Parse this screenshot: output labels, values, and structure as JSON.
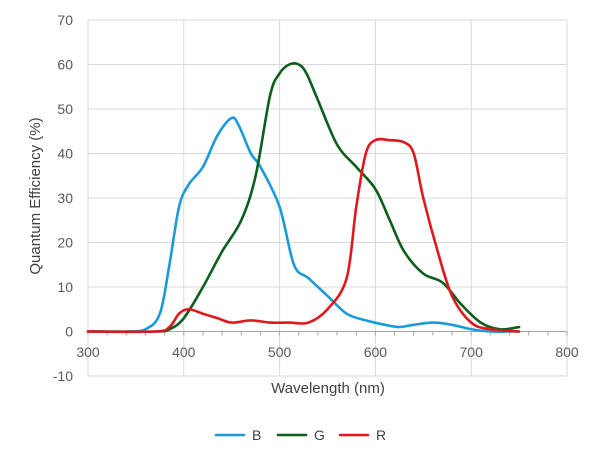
{
  "chart_data": {
    "type": "line",
    "xlabel": "Wavelength (nm)",
    "ylabel": "Quantum Efficiency (%)",
    "xlim": [
      300,
      800
    ],
    "ylim": [
      -10,
      70
    ],
    "xticks": [
      300,
      400,
      500,
      600,
      700,
      800
    ],
    "yticks": [
      -10,
      0,
      10,
      20,
      30,
      40,
      50,
      60,
      70
    ],
    "grid": true,
    "legend_position": "bottom",
    "series": [
      {
        "name": "B",
        "color": "#1a9bd7",
        "x": [
          300,
          340,
          360,
          375,
          385,
          395,
          405,
          420,
          435,
          450,
          458,
          470,
          480,
          500,
          515,
          530,
          550,
          570,
          590,
          610,
          625,
          640,
          660,
          680,
          700,
          720,
          740,
          750
        ],
        "y": [
          0,
          0,
          0.5,
          4,
          15,
          28,
          33,
          37,
          44,
          48,
          46,
          40,
          37,
          28,
          15,
          12,
          8,
          4,
          2.5,
          1.5,
          1,
          1.5,
          2,
          1.5,
          0.5,
          0,
          0,
          0
        ]
      },
      {
        "name": "G",
        "color": "#0b5e1b",
        "x": [
          300,
          370,
          385,
          400,
          420,
          440,
          460,
          475,
          490,
          500,
          510,
          520,
          528,
          540,
          560,
          580,
          600,
          615,
          630,
          650,
          670,
          690,
          710,
          730,
          750
        ],
        "y": [
          0,
          0,
          0.5,
          3,
          10,
          18,
          25,
          35,
          53,
          58,
          60,
          60,
          58,
          52,
          42,
          37,
          32,
          25,
          18,
          13,
          11,
          6,
          2,
          0.5,
          1
        ]
      },
      {
        "name": "R",
        "color": "#e0181e",
        "x": [
          300,
          370,
          385,
          395,
          405,
          420,
          435,
          450,
          470,
          490,
          510,
          530,
          550,
          570,
          580,
          590,
          600,
          615,
          630,
          640,
          650,
          665,
          680,
          700,
          720,
          750
        ],
        "y": [
          0,
          0,
          1,
          4,
          5,
          4,
          3,
          2,
          2.5,
          2,
          2,
          2,
          5,
          12,
          28,
          40,
          43,
          43,
          42.5,
          40,
          30,
          18,
          8,
          2,
          0.5,
          0
        ]
      }
    ]
  }
}
